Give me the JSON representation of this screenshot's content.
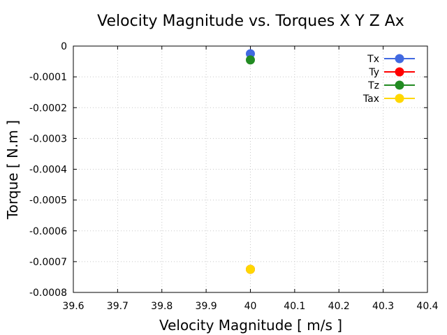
{
  "chart_data": {
    "type": "scatter",
    "title": "Velocity Magnitude vs. Torques X Y Z Ax",
    "xlabel": "Velocity Magnitude [ m/s ]",
    "ylabel": "Torque [ N.m ]",
    "xlim": [
      39.6,
      40.4
    ],
    "ylim": [
      -0.0008,
      0
    ],
    "xticks": [
      "39.6",
      "39.7",
      "39.8",
      "39.9",
      "40",
      "40.1",
      "40.2",
      "40.3",
      "40.4"
    ],
    "yticks": [
      "0",
      "-0.0001",
      "-0.0002",
      "-0.0003",
      "-0.0004",
      "-0.0005",
      "-0.0006",
      "-0.0007",
      "-0.0008"
    ],
    "grid": true,
    "legend_position": "top-right",
    "series": [
      {
        "name": "Tx",
        "color": "#4169e1",
        "x": [
          40.0
        ],
        "y": [
          -2.5e-05
        ]
      },
      {
        "name": "Ty",
        "color": "#ff0000",
        "x": [
          40.0
        ],
        "y": [
          -0.000725
        ]
      },
      {
        "name": "Tz",
        "color": "#228b22",
        "x": [
          40.0
        ],
        "y": [
          -4.5e-05
        ]
      },
      {
        "name": "Tax",
        "color": "#ffd700",
        "x": [
          40.0
        ],
        "y": [
          -0.000725
        ]
      }
    ]
  }
}
